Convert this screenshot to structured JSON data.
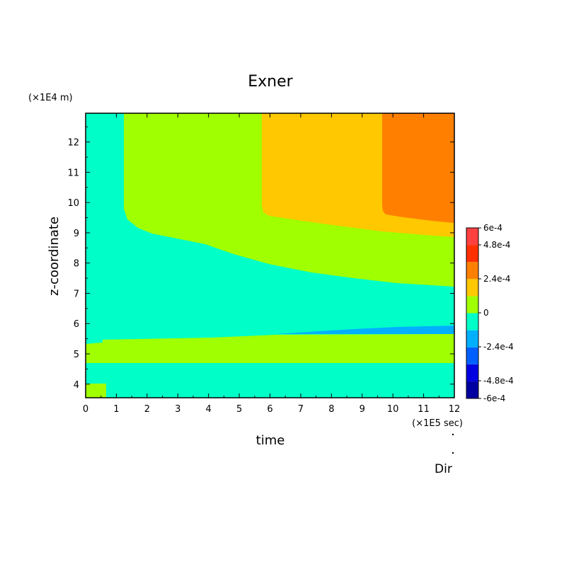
{
  "chart_data": {
    "type": "heatmap",
    "title": "Exner",
    "xlabel": "time",
    "ylabel": "z-coordinate",
    "x_unit": "(×1E5 sec)",
    "y_unit": "(×1E4 m)",
    "xlim": [
      0,
      12
    ],
    "ylim": [
      3.55,
      12.95
    ],
    "x_ticks": [
      "0",
      "1",
      "2",
      "3",
      "4",
      "5",
      "6",
      "7",
      "8",
      "9",
      "10",
      "11",
      "12"
    ],
    "y_ticks": [
      "4",
      "5",
      "6",
      "7",
      "8",
      "9",
      "10",
      "11",
      "12"
    ],
    "colorbar": {
      "labels": [
        "6e-4",
        "4.8e-4",
        "2.4e-4",
        "0",
        "-2.4e-4",
        "-4.8e-4",
        "-6e-4"
      ],
      "colors": [
        "#0000a0",
        "#0000e0",
        "#0060ff",
        "#00b0ff",
        "#00ffc8",
        "#a0ff00",
        "#ffc800",
        "#ff8000",
        "#ff3000",
        "#ff4040"
      ]
    },
    "levels": [
      {
        "name": "0 to 1.2e-4",
        "color": "#a0ff00"
      },
      {
        "name": "-1.2e-4 to 0",
        "color": "#00ffc8"
      },
      {
        "name": "1.2e-4 to 2.4e-4",
        "color": "#ffc800"
      },
      {
        "name": "2.4e-4 to 3.6e-4",
        "color": "#ff8000"
      },
      {
        "name": "-2.4e-4 to -1.2e-4",
        "color": "#00b0ff"
      }
    ],
    "footer": "Dir"
  }
}
